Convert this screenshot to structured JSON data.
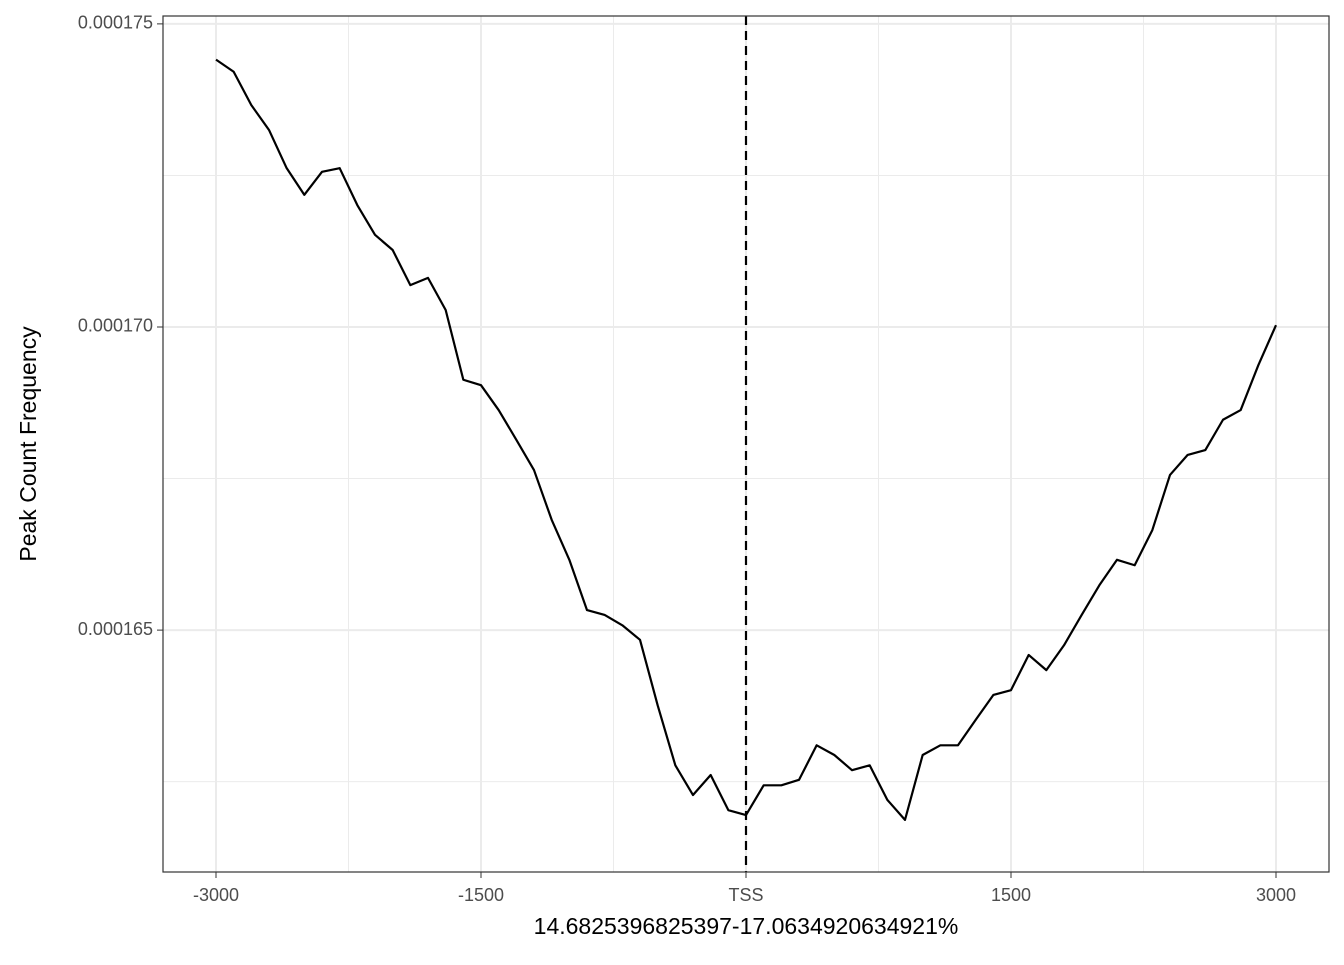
{
  "chart_data": {
    "type": "line",
    "xlabel": "14.6825396825397-17.0634920634921%",
    "ylabel": "Peak Count Frequency",
    "x": [
      -3000,
      -2900,
      -2800,
      -2700,
      -2600,
      -2500,
      -2400,
      -2300,
      -2200,
      -2100,
      -2000,
      -1900,
      -1800,
      -1700,
      -1600,
      -1500,
      -1400,
      -1300,
      -1200,
      -1100,
      -1000,
      -900,
      -800,
      -700,
      -600,
      -500,
      -400,
      -300,
      -200,
      -100,
      0,
      100,
      200,
      300,
      400,
      500,
      600,
      700,
      800,
      900,
      1000,
      1100,
      1200,
      1300,
      1400,
      1500,
      1600,
      1700,
      1800,
      1900,
      2000,
      2100,
      2200,
      2300,
      2400,
      2500,
      2600,
      2700,
      2800,
      2900,
      3000
    ],
    "series": [
      {
        "color": "#000000",
        "values": [
          0.00017441,
          0.00017421,
          0.00017366,
          0.00017325,
          0.00017262,
          0.00017218,
          0.00017256,
          0.00017262,
          0.00017201,
          0.00017152,
          0.00017127,
          0.00017069,
          0.00017081,
          0.00017028,
          0.00016913,
          0.00016904,
          0.00016863,
          0.00016814,
          0.00016764,
          0.00016682,
          0.00016616,
          0.00016533,
          0.00016525,
          0.00016508,
          0.00016484,
          0.00016376,
          0.00016277,
          0.00016228,
          0.00016261,
          0.00016203,
          0.00016195,
          0.00016244,
          0.00016244,
          0.00016253,
          0.0001631,
          0.00016294,
          0.00016269,
          0.00016277,
          0.0001622,
          0.00016187,
          0.00016294,
          0.0001631,
          0.0001631,
          0.00016352,
          0.00016393,
          0.00016401,
          0.00016459,
          0.00016434,
          0.00016475,
          0.00016525,
          0.00016574,
          0.00016616,
          0.00016607,
          0.00016665,
          0.00016756,
          0.00016789,
          0.00016797,
          0.00016847,
          0.00016863,
          0.00016937,
          0.00017003
        ]
      }
    ],
    "xlim": [
      -3300,
      3300
    ],
    "ylim": [
      0.00016101,
      0.00017513
    ],
    "xticks": [
      -3000,
      -1500,
      {
        "value": 0,
        "label": "TSS"
      },
      1500,
      3000
    ],
    "yticks": [
      0.000165,
      {
        "value": 0.00017,
        "label": "0.000170"
      },
      0.000175
    ],
    "x_minor_ticks": [
      -2250,
      -750,
      750,
      2250
    ],
    "y_minor_ticks": [
      0.0001625,
      0.0001675,
      0.0001725
    ],
    "vline": 0,
    "grid": true
  }
}
